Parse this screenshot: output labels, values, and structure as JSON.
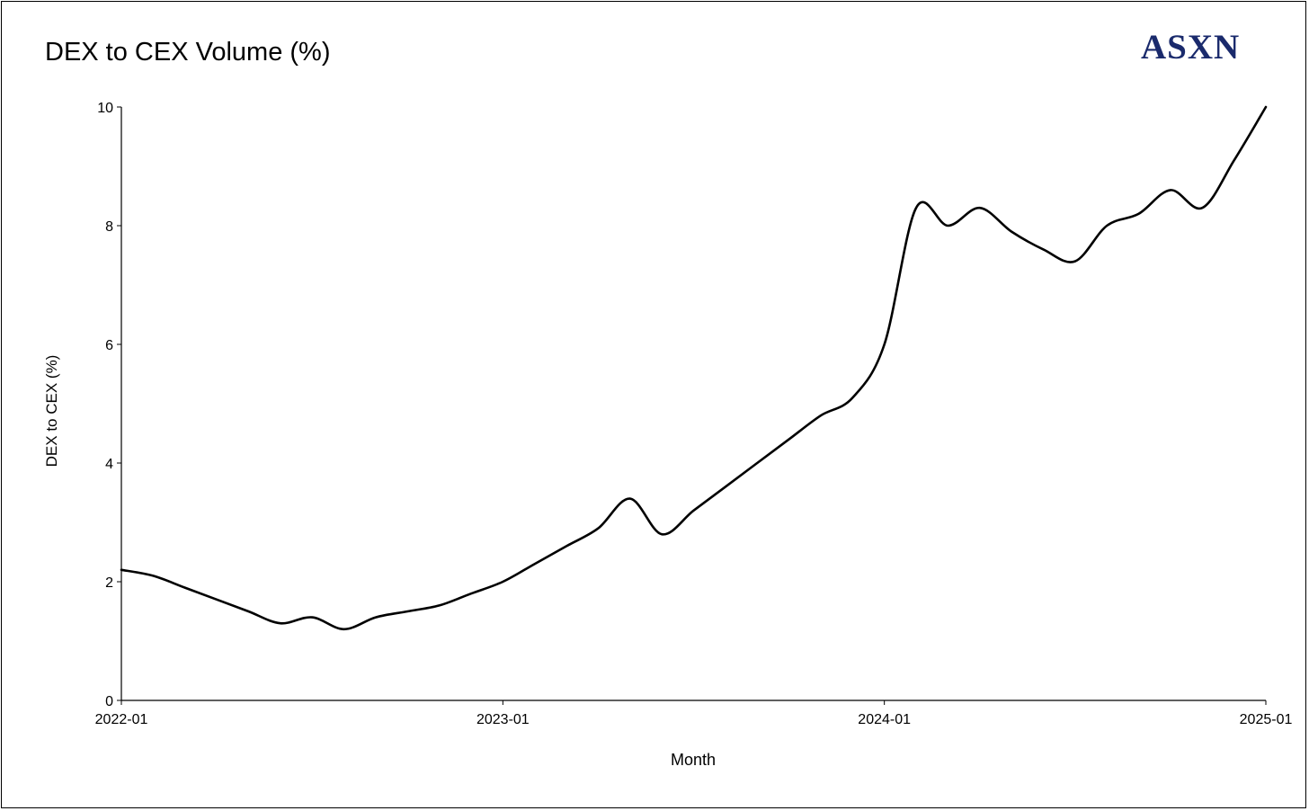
{
  "brand": {
    "logo_text": "ASXN",
    "color": "#1a2a6c"
  },
  "chart_data": {
    "type": "line",
    "title": "DEX to CEX Volume (%)",
    "xlabel": "Month",
    "ylabel": "DEX to CEX (%)",
    "ylim": [
      0,
      10
    ],
    "yticks": [
      0,
      2,
      4,
      6,
      8,
      10
    ],
    "xticks": [
      "2022-01",
      "2023-01",
      "2024-01",
      "2025-01"
    ],
    "grid": false,
    "line_color": "#000000",
    "x": [
      "2022-01",
      "2022-02",
      "2022-03",
      "2022-04",
      "2022-05",
      "2022-06",
      "2022-07",
      "2022-08",
      "2022-09",
      "2022-10",
      "2022-11",
      "2022-12",
      "2023-01",
      "2023-02",
      "2023-03",
      "2023-04",
      "2023-05",
      "2023-06",
      "2023-07",
      "2023-08",
      "2023-09",
      "2023-10",
      "2023-11",
      "2023-12",
      "2024-01",
      "2024-02",
      "2024-03",
      "2024-04",
      "2024-05",
      "2024-06",
      "2024-07",
      "2024-08",
      "2024-09",
      "2024-10",
      "2024-11",
      "2024-12",
      "2025-01"
    ],
    "series": [
      {
        "values": [
          2.2,
          2.1,
          1.9,
          1.7,
          1.5,
          1.3,
          1.4,
          1.2,
          1.4,
          1.5,
          1.6,
          1.8,
          2.0,
          2.3,
          2.6,
          2.9,
          3.4,
          2.8,
          3.2,
          3.6,
          4.0,
          4.4,
          4.8,
          5.1,
          6.0,
          8.3,
          8.0,
          8.3,
          7.9,
          7.6,
          7.4,
          8.0,
          8.2,
          8.6,
          8.3,
          9.1,
          10.0
        ]
      }
    ]
  }
}
